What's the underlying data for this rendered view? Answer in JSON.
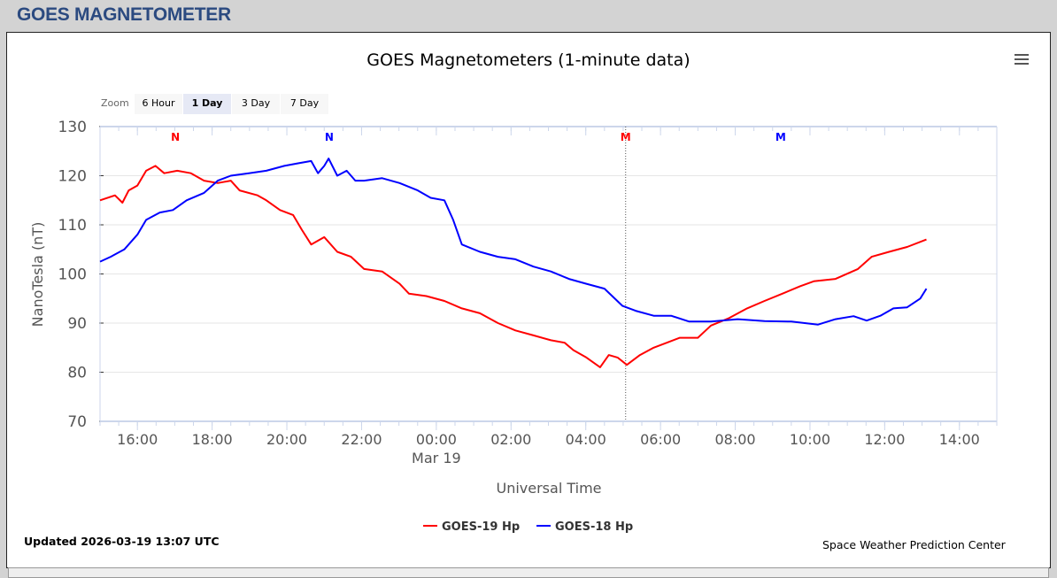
{
  "header": {
    "title": "GOES MAGNETOMETER"
  },
  "toolbar": {
    "zoom_label": "Zoom",
    "buttons": [
      "6 Hour",
      "1 Day",
      "3 Day",
      "7 Day"
    ],
    "selected": "1 Day",
    "menu_icon": "hamburger-menu-icon"
  },
  "footer": {
    "updated": "Updated 2026-03-19 13:07 UTC",
    "credit": "Space Weather Prediction Center"
  },
  "chart_data": {
    "type": "line",
    "title": "GOES Magnetometers (1-minute data)",
    "xlabel": "Universal Time",
    "ylabel": "NanoTesla (nT)",
    "ylim": [
      70,
      130
    ],
    "yticks": [
      "70",
      "80",
      "90",
      "100",
      "110",
      "120",
      "130"
    ],
    "xlim": [
      "2026-03-18T15:00",
      "2026-03-19T15:00"
    ],
    "xticks": [
      {
        "t": "2026-03-18T16:00",
        "label": "16:00"
      },
      {
        "t": "2026-03-18T18:00",
        "label": "18:00"
      },
      {
        "t": "2026-03-18T20:00",
        "label": "20:00"
      },
      {
        "t": "2026-03-18T22:00",
        "label": "22:00"
      },
      {
        "t": "2026-03-19T00:00",
        "label": "00:00",
        "sub": "Mar 19"
      },
      {
        "t": "2026-03-19T02:00",
        "label": "02:00"
      },
      {
        "t": "2026-03-19T04:00",
        "label": "04:00"
      },
      {
        "t": "2026-03-19T06:00",
        "label": "06:00"
      },
      {
        "t": "2026-03-19T08:00",
        "label": "08:00"
      },
      {
        "t": "2026-03-19T10:00",
        "label": "10:00"
      },
      {
        "t": "2026-03-19T12:00",
        "label": "12:00"
      },
      {
        "t": "2026-03-19T14:00",
        "label": "14:00"
      }
    ],
    "grid": true,
    "legend": "bottom-center",
    "annotations": [
      {
        "label": "N",
        "t": "2026-03-18T17:01",
        "color": "#ff0000"
      },
      {
        "label": "N",
        "t": "2026-03-18T21:08",
        "color": "#0000ff"
      },
      {
        "label": "M",
        "t": "2026-03-19T05:04",
        "color": "#ff0000",
        "line": true
      },
      {
        "label": "M",
        "t": "2026-03-19T09:13",
        "color": "#0000ff"
      }
    ],
    "series": [
      {
        "name": "GOES-19 Hp",
        "color": "#ff0000",
        "points": [
          [
            "2026-03-18T15:00",
            115
          ],
          [
            "2026-03-18T15:24",
            116
          ],
          [
            "2026-03-18T15:36",
            114.5
          ],
          [
            "2026-03-18T15:46",
            117
          ],
          [
            "2026-03-18T16:00",
            118
          ],
          [
            "2026-03-18T16:14",
            121
          ],
          [
            "2026-03-18T16:29",
            122
          ],
          [
            "2026-03-18T16:43",
            120.5
          ],
          [
            "2026-03-18T17:04",
            121
          ],
          [
            "2026-03-18T17:26",
            120.5
          ],
          [
            "2026-03-18T17:47",
            119
          ],
          [
            "2026-03-18T18:09",
            118.5
          ],
          [
            "2026-03-18T18:30",
            119
          ],
          [
            "2026-03-18T18:44",
            117
          ],
          [
            "2026-03-18T19:13",
            116
          ],
          [
            "2026-03-18T19:27",
            115
          ],
          [
            "2026-03-18T19:49",
            113
          ],
          [
            "2026-03-18T20:10",
            112
          ],
          [
            "2026-03-18T20:24",
            109
          ],
          [
            "2026-03-18T20:39",
            106
          ],
          [
            "2026-03-18T21:00",
            107.5
          ],
          [
            "2026-03-18T21:21",
            104.5
          ],
          [
            "2026-03-18T21:43",
            103.5
          ],
          [
            "2026-03-18T22:04",
            101
          ],
          [
            "2026-03-18T22:33",
            100.5
          ],
          [
            "2026-03-18T23:01",
            98
          ],
          [
            "2026-03-18T23:16",
            96
          ],
          [
            "2026-03-18T23:44",
            95.5
          ],
          [
            "2026-03-19T00:13",
            94.5
          ],
          [
            "2026-03-19T00:41",
            93
          ],
          [
            "2026-03-19T01:10",
            92
          ],
          [
            "2026-03-19T01:39",
            90
          ],
          [
            "2026-03-19T02:07",
            88.5
          ],
          [
            "2026-03-19T02:36",
            87.5
          ],
          [
            "2026-03-19T03:04",
            86.5
          ],
          [
            "2026-03-19T03:26",
            86
          ],
          [
            "2026-03-19T03:40",
            84.5
          ],
          [
            "2026-03-19T04:01",
            83
          ],
          [
            "2026-03-19T04:23",
            81
          ],
          [
            "2026-03-19T04:37",
            83.5
          ],
          [
            "2026-03-19T04:51",
            83
          ],
          [
            "2026-03-19T05:06",
            81.5
          ],
          [
            "2026-03-19T05:27",
            83.5
          ],
          [
            "2026-03-19T05:49",
            85
          ],
          [
            "2026-03-19T06:10",
            86
          ],
          [
            "2026-03-19T06:31",
            87
          ],
          [
            "2026-03-19T07:00",
            87
          ],
          [
            "2026-03-19T07:21",
            89.5
          ],
          [
            "2026-03-19T07:50",
            91
          ],
          [
            "2026-03-19T08:19",
            93
          ],
          [
            "2026-03-19T08:47",
            94.5
          ],
          [
            "2026-03-19T09:16",
            96
          ],
          [
            "2026-03-19T09:44",
            97.5
          ],
          [
            "2026-03-19T10:06",
            98.5
          ],
          [
            "2026-03-19T10:41",
            99
          ],
          [
            "2026-03-19T11:17",
            101
          ],
          [
            "2026-03-19T11:39",
            103.5
          ],
          [
            "2026-03-19T12:07",
            104.5
          ],
          [
            "2026-03-19T12:36",
            105.5
          ],
          [
            "2026-03-19T13:07",
            107
          ]
        ]
      },
      {
        "name": "GOES-18 Hp",
        "color": "#0000ff",
        "points": [
          [
            "2026-03-18T15:00",
            102.5
          ],
          [
            "2026-03-18T15:17",
            103.5
          ],
          [
            "2026-03-18T15:39",
            105
          ],
          [
            "2026-03-18T16:00",
            108
          ],
          [
            "2026-03-18T16:14",
            111
          ],
          [
            "2026-03-18T16:36",
            112.5
          ],
          [
            "2026-03-18T16:57",
            113
          ],
          [
            "2026-03-18T17:19",
            115
          ],
          [
            "2026-03-18T17:47",
            116.5
          ],
          [
            "2026-03-18T18:09",
            119
          ],
          [
            "2026-03-18T18:30",
            120
          ],
          [
            "2026-03-18T18:59",
            120.5
          ],
          [
            "2026-03-18T19:27",
            121
          ],
          [
            "2026-03-18T19:56",
            122
          ],
          [
            "2026-03-18T20:17",
            122.5
          ],
          [
            "2026-03-18T20:39",
            123
          ],
          [
            "2026-03-18T20:50",
            120.5
          ],
          [
            "2026-03-18T21:00",
            122
          ],
          [
            "2026-03-18T21:07",
            123.5
          ],
          [
            "2026-03-18T21:21",
            120
          ],
          [
            "2026-03-18T21:36",
            121
          ],
          [
            "2026-03-18T21:50",
            119
          ],
          [
            "2026-03-18T22:04",
            119
          ],
          [
            "2026-03-18T22:33",
            119.5
          ],
          [
            "2026-03-18T23:01",
            118.5
          ],
          [
            "2026-03-18T23:30",
            117
          ],
          [
            "2026-03-18T23:51",
            115.5
          ],
          [
            "2026-03-19T00:13",
            115
          ],
          [
            "2026-03-19T00:27",
            111
          ],
          [
            "2026-03-19T00:41",
            106
          ],
          [
            "2026-03-19T01:10",
            104.5
          ],
          [
            "2026-03-19T01:39",
            103.5
          ],
          [
            "2026-03-19T02:07",
            103
          ],
          [
            "2026-03-19T02:36",
            101.5
          ],
          [
            "2026-03-19T03:04",
            100.5
          ],
          [
            "2026-03-19T03:33",
            99
          ],
          [
            "2026-03-19T04:01",
            98
          ],
          [
            "2026-03-19T04:30",
            97
          ],
          [
            "2026-03-19T04:59",
            93.5
          ],
          [
            "2026-03-19T05:20",
            92.5
          ],
          [
            "2026-03-19T05:49",
            91.5
          ],
          [
            "2026-03-19T06:17",
            91.5
          ],
          [
            "2026-03-19T06:46",
            90.3
          ],
          [
            "2026-03-19T07:21",
            90.3
          ],
          [
            "2026-03-19T08:04",
            90.8
          ],
          [
            "2026-03-19T08:47",
            90.4
          ],
          [
            "2026-03-19T09:30",
            90.3
          ],
          [
            "2026-03-19T10:13",
            89.7
          ],
          [
            "2026-03-19T10:41",
            90.8
          ],
          [
            "2026-03-19T11:10",
            91.4
          ],
          [
            "2026-03-19T11:31",
            90.5
          ],
          [
            "2026-03-19T11:53",
            91.5
          ],
          [
            "2026-03-19T12:14",
            93
          ],
          [
            "2026-03-19T12:36",
            93.2
          ],
          [
            "2026-03-19T12:57",
            95
          ],
          [
            "2026-03-19T13:07",
            97
          ]
        ]
      }
    ]
  }
}
